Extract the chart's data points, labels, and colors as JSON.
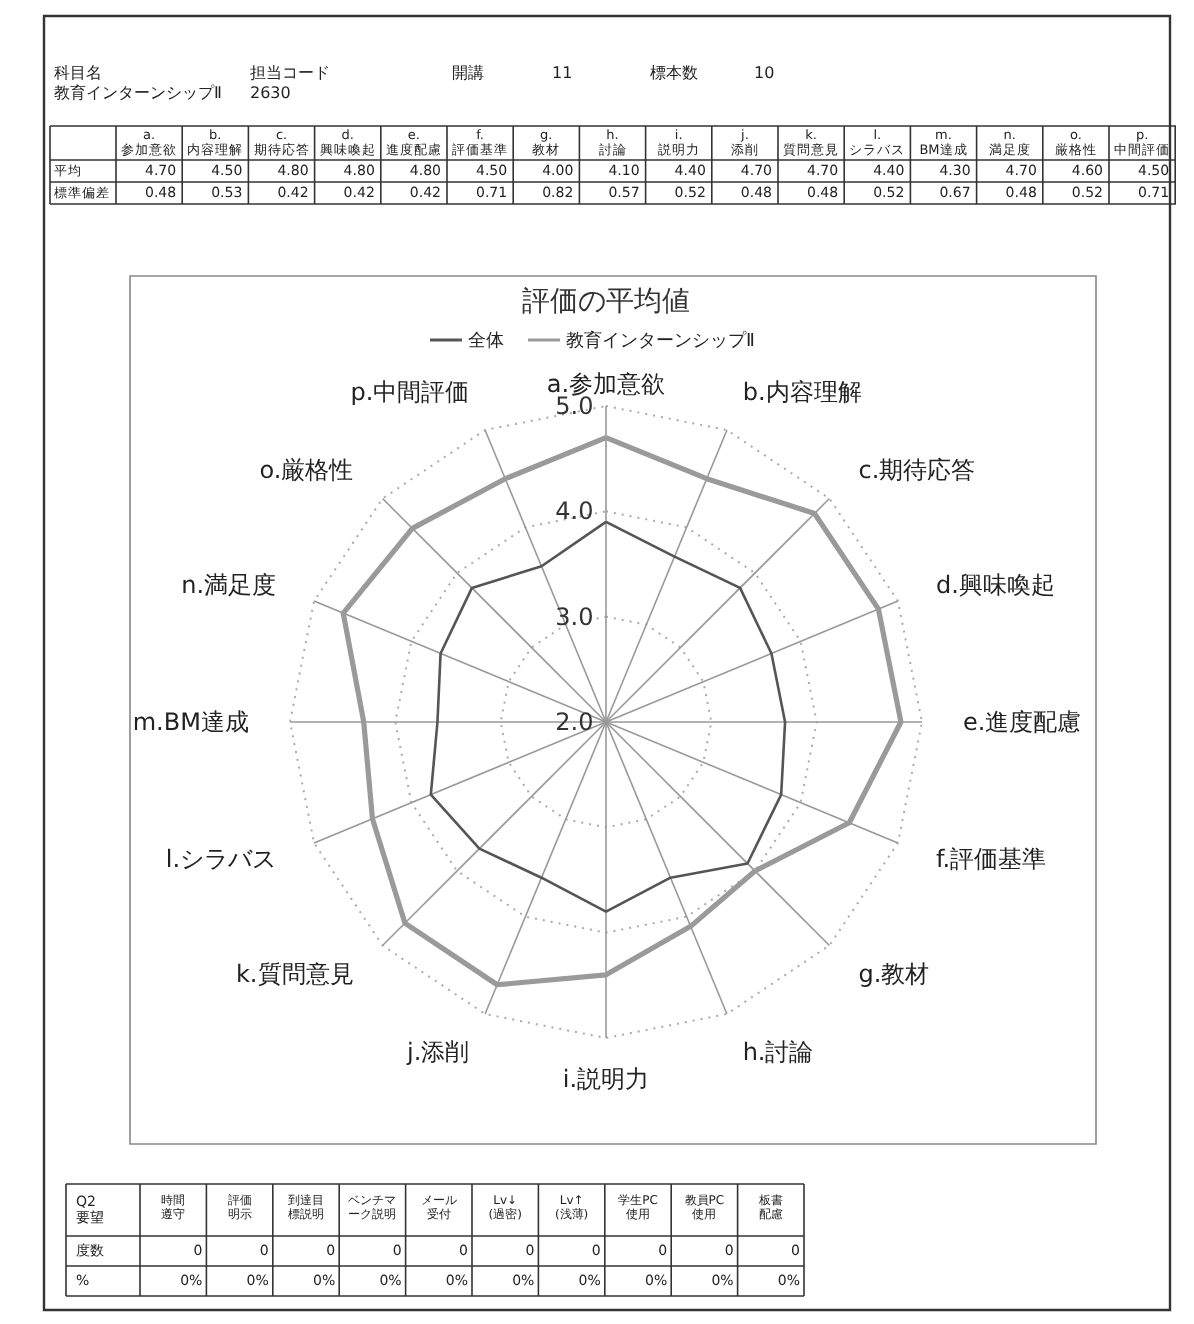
{
  "chart_data": {
    "type": "radar",
    "title": "評価の平均値",
    "categories": [
      "a.参加意欲",
      "b.内容理解",
      "c.期待応答",
      "d.興味喚起",
      "e.進度配慮",
      "f.評価基準",
      "g.教材",
      "h.討論",
      "i.説明力",
      "j.添削",
      "k.質問意見",
      "l.シラバス",
      "m.BM達成",
      "n.満足度",
      "o.厳格性",
      "p.中間評価"
    ],
    "series": [
      {
        "name": "全体",
        "color": "#555555",
        "values": [
          3.9,
          3.7,
          3.8,
          3.7,
          3.7,
          3.8,
          3.9,
          3.6,
          3.8,
          3.6,
          3.7,
          3.8,
          3.6,
          3.7,
          3.8,
          3.6
        ]
      },
      {
        "name": "教育インターンシップⅡ",
        "color": "#9a9a9a",
        "values": [
          4.7,
          4.5,
          4.8,
          4.8,
          4.8,
          4.5,
          4.0,
          4.1,
          4.4,
          4.7,
          4.7,
          4.4,
          4.3,
          4.7,
          4.6,
          4.5
        ]
      }
    ],
    "ylim": [
      2,
      5
    ],
    "yticks": [
      {
        "value": 2,
        "label": "2.0"
      },
      {
        "value": 3,
        "label": "3.0"
      },
      {
        "value": 4,
        "label": "4.0"
      },
      {
        "value": 5,
        "label": "5.0"
      }
    ],
    "legend": "top",
    "grid": true,
    "annotations": [
      "科目名",
      "教育インターンシップⅡ",
      "担当コード",
      "2630",
      "開講",
      "11",
      "標本数",
      "10",
      "平均",
      "標準偏差",
      "0.48",
      "0.53",
      "0.42",
      "0.42",
      "0.42",
      "0.71",
      "0.82",
      "0.57",
      "0.52",
      "0.48",
      "0.48",
      "0.52",
      "0.67",
      "0.48",
      "0.52",
      "0.71",
      "Q2\n要望",
      "度数",
      "%",
      "時間遵守",
      "評価明示",
      "到達目標説明",
      "ベンチマーク説明",
      "メール受付",
      "Lv↓\n(過密)",
      "Lv↑\n(浅薄)",
      "学生PC\n使用",
      "教員PC\n使用",
      "板書配慮",
      "0",
      "0",
      "0",
      "0",
      "0",
      "0",
      "0",
      "0",
      "0",
      "0",
      "0%",
      "0%",
      "0%",
      "0%",
      "0%",
      "0%",
      "0%",
      "0%",
      "0%",
      "0%",
      "4.70",
      "4.50",
      "4.80",
      "4.80",
      "4.80",
      "4.50",
      "4.00",
      "4.10",
      "4.40",
      "4.70",
      "4.70",
      "4.40",
      "4.30",
      "4.70",
      "4.60",
      "4.50"
    ]
  }
}
